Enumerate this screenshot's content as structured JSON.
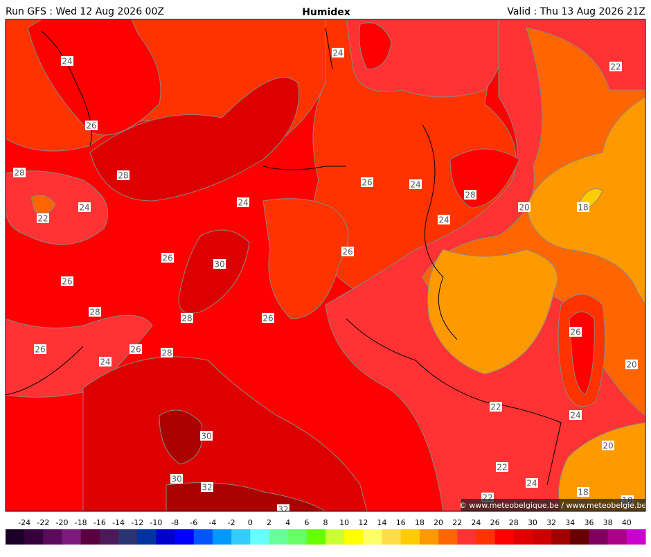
{
  "header": {
    "left": "Run GFS : Wed 12 Aug 2026 00Z",
    "title": "Humidex",
    "right": "Valid : Thu 13 Aug 2026 21Z"
  },
  "contour_labels": [
    24,
    24,
    22,
    26,
    28,
    28,
    26,
    24,
    24,
    24,
    28,
    20,
    18,
    22,
    24,
    26,
    30,
    26,
    26,
    28,
    28,
    26,
    26,
    26,
    26,
    28,
    24,
    20,
    22,
    24,
    30,
    20,
    22,
    30,
    32,
    24,
    18,
    22,
    32,
    18
  ],
  "credit": "© www.meteobelgique.be / www.meteobelgie.be",
  "colorbar": {
    "ticks": [
      -24,
      -22,
      -20,
      -18,
      -16,
      -14,
      -12,
      -10,
      -8,
      -6,
      -4,
      -2,
      0,
      2,
      4,
      6,
      8,
      10,
      12,
      14,
      16,
      18,
      20,
      22,
      24,
      26,
      28,
      30,
      32,
      34,
      36,
      38,
      40
    ],
    "colors": [
      "#1a0026",
      "#36003d",
      "#5c0a5c",
      "#7d1a7d",
      "#5a0040",
      "#4a1a5a",
      "#2b3370",
      "#0033a0",
      "#0000cc",
      "#0000ff",
      "#0055ff",
      "#0099ff",
      "#33ccff",
      "#66ffff",
      "#66ff99",
      "#66ff66",
      "#66ff00",
      "#ccff33",
      "#ffff00",
      "#ffff66",
      "#ffdd44",
      "#ffcc00",
      "#ff9900",
      "#ff6600",
      "#ff3333",
      "#ff3300",
      "#ff0000",
      "#e00000",
      "#cc0000",
      "#a00000",
      "#660000",
      "#800060",
      "#aa0088",
      "#cc00cc"
    ]
  }
}
